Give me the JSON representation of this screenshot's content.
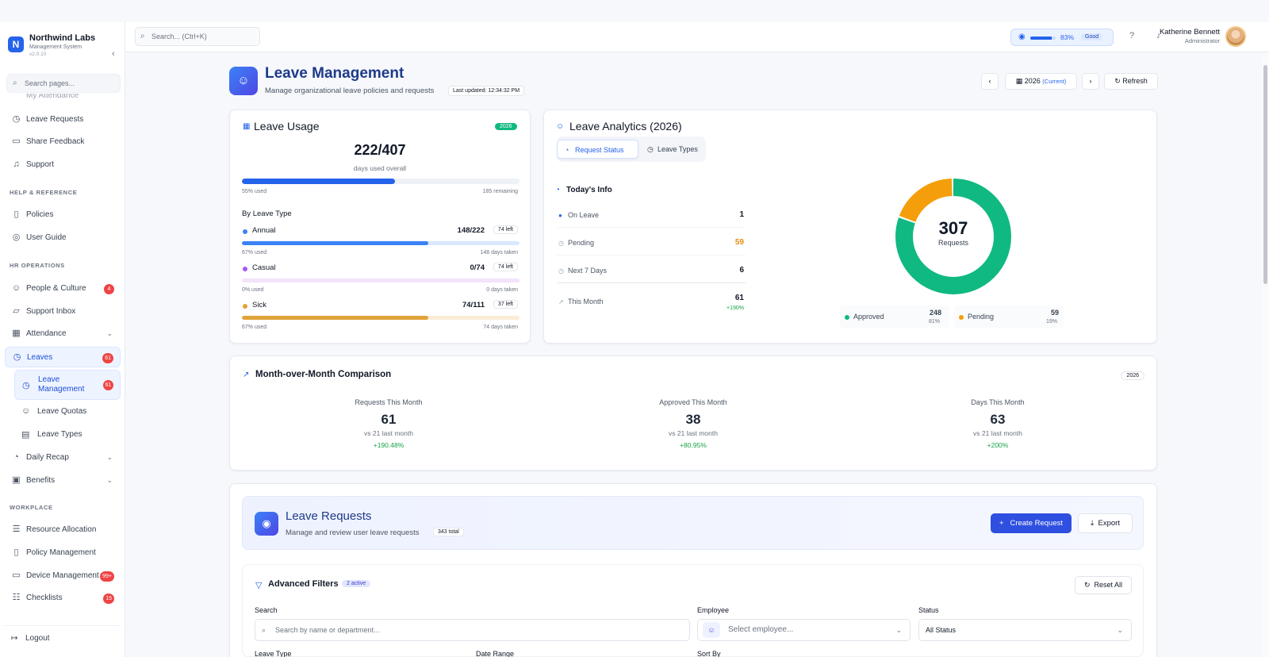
{
  "brand": {
    "name": "Northwind Labs",
    "subtitle": "Management System",
    "version": "v2.0.10"
  },
  "sidebar": {
    "search_placeholder": "Search pages...",
    "cut_item": "My Attendance",
    "items_top": [
      {
        "label": "Leave Requests",
        "icon": "calendar-clock-icon"
      },
      {
        "label": "Share Feedback",
        "icon": "message-icon"
      },
      {
        "label": "Support",
        "icon": "headset-icon"
      }
    ],
    "section_help": "HELP & REFERENCE",
    "items_help": [
      {
        "label": "Policies",
        "icon": "book-icon"
      },
      {
        "label": "User Guide",
        "icon": "lifebuoy-icon"
      }
    ],
    "section_hr": "HR OPERATIONS",
    "items_hr": [
      {
        "label": "People & Culture",
        "badge": "4"
      },
      {
        "label": "Support Inbox"
      },
      {
        "label": "Attendance"
      },
      {
        "label": "Leaves",
        "badge": "61"
      }
    ],
    "sub_items": [
      {
        "label": "Leave Management",
        "badge": "61"
      },
      {
        "label": "Leave Quotas"
      },
      {
        "label": "Leave Types"
      }
    ],
    "items_after": [
      {
        "label": "Daily Recap"
      },
      {
        "label": "Benefits"
      }
    ],
    "section_work": "WORKPLACE",
    "items_work": [
      {
        "label": "Resource Allocation"
      },
      {
        "label": "Policy Management"
      },
      {
        "label": "Device Management",
        "badge": "99+"
      },
      {
        "label": "Checklists",
        "badge": "15"
      }
    ],
    "logout": "Logout"
  },
  "header": {
    "search_placeholder": "Search... (Ctrl+K)",
    "performance": {
      "percent_label": "83%",
      "value": 0.83,
      "status": "Good"
    },
    "user": {
      "name": "Katherine Bennett",
      "role": "Administrator"
    }
  },
  "page": {
    "title": "Leave Management",
    "subtitle": "Manage organizational leave policies and requests",
    "last_updated": "Last updated: 12:34:32 PM",
    "year": "2026",
    "year_current": "(Current)",
    "refresh": "Refresh"
  },
  "usage": {
    "title": "Leave Usage",
    "year_pill": "2026",
    "total": "222/407",
    "caption": "days used overall",
    "overall_fraction": 0.55,
    "used_label": "55% used",
    "remaining_label": "185 remaining",
    "by_type_title": "By Leave Type",
    "types": [
      {
        "name": "Annual",
        "value": "148/222",
        "left": "74 left",
        "used": "67% used",
        "taken": "148 days taken",
        "fraction": 0.67,
        "color": "#3b82f6",
        "track": "#dbe7ff"
      },
      {
        "name": "Casual",
        "value": "0/74",
        "left": "74 left",
        "used": "0% used",
        "taken": "0 days taken",
        "fraction": 0.0,
        "color": "#a855f7",
        "track": "#f3e3fb"
      },
      {
        "name": "Sick",
        "value": "74/111",
        "left": "37 left",
        "used": "67% used",
        "taken": "74 days taken",
        "fraction": 0.67,
        "color": "#e0a33a",
        "track": "#fbecd5"
      }
    ]
  },
  "analytics": {
    "title": "Leave Analytics (2026)",
    "tab_status": "Request Status",
    "tab_types": "Leave Types",
    "today_title": "Today's Info",
    "rows": [
      {
        "label": "On Leave",
        "value": "1"
      },
      {
        "label": "Pending",
        "value": "59"
      },
      {
        "label": "Next 7 Days",
        "value": "6"
      }
    ],
    "month_label": "This Month",
    "month_value": "61",
    "month_change": "+190%",
    "donut_total": "307",
    "donut_caption": "Requests",
    "legend": [
      {
        "name": "Approved",
        "value": "248",
        "pct": "81%",
        "count": 248,
        "color": "#10b981"
      },
      {
        "name": "Pending",
        "value": "59",
        "pct": "19%",
        "count": 59,
        "color": "#f59e0b"
      }
    ]
  },
  "mom": {
    "title": "Month-over-Month Comparison",
    "year_pill": "2026",
    "cards": [
      {
        "label": "Requests This Month",
        "value": "61",
        "vs": "vs 21 last month",
        "change": "+190.48%",
        "color": "#2f4fd0",
        "bg": "#eef2fd"
      },
      {
        "label": "Approved This Month",
        "value": "38",
        "vs": "vs 21 last month",
        "change": "+80.95%",
        "color": "#16a34a",
        "bg": "#ecfbf1"
      },
      {
        "label": "Days This Month",
        "value": "63",
        "vs": "vs 21 last month",
        "change": "+200%",
        "color": "#9333ea",
        "bg": "#fdf0f6"
      }
    ]
  },
  "requests": {
    "title": "Leave Requests",
    "subtitle": "Manage and review user leave requests",
    "total": "343 total",
    "create": "Create Request",
    "export": "Export"
  },
  "filters": {
    "title": "Advanced Filters",
    "active": "2 active",
    "reset": "Reset All",
    "search_label": "Search",
    "search_placeholder": "Search by name or department...",
    "employee_label": "Employee",
    "employee_placeholder": "Select employee...",
    "status_label": "Status",
    "status_value": "All Status",
    "leave_type_label": "Leave Type",
    "date_range_label": "Date Range",
    "sort_by_label": "Sort By"
  }
}
